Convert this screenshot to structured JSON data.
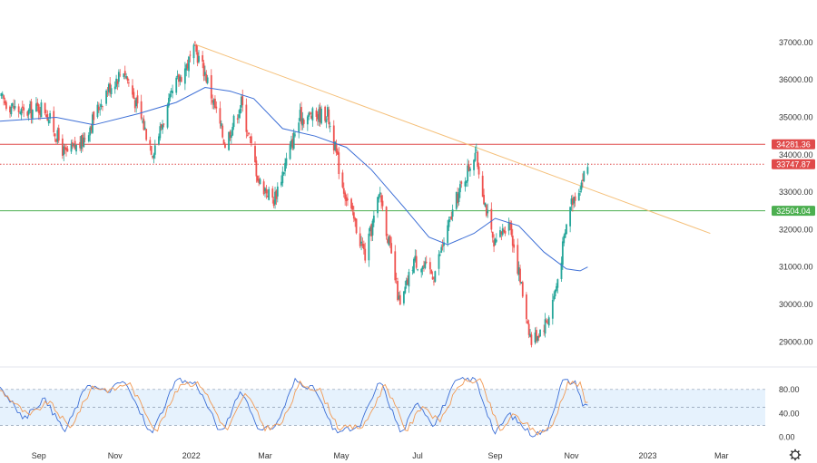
{
  "chart_data": [
    {
      "type": "candlestick",
      "panel": "price",
      "y_ticks": [
        37000,
        36000,
        35000,
        34000,
        33000,
        32000,
        31000,
        30000,
        29000
      ],
      "ylim": [
        28500,
        37700
      ],
      "colors": {
        "up": "#26a69a",
        "down": "#ef5350",
        "ma": "#3d6fd6",
        "trend": "#f5c07a",
        "resistance": "#e04a4a",
        "support": "#4caf50",
        "last": "#e04a4a"
      },
      "price_tags": [
        {
          "id": "resistance",
          "value": 34281.36,
          "label": "34281.36",
          "color": "#e04a4a"
        },
        {
          "id": "last",
          "value": 33747.87,
          "label": "33747.87",
          "color": "#e04a4a"
        },
        {
          "id": "support",
          "value": 32504.04,
          "label": "32504.04",
          "color": "#4caf50"
        }
      ],
      "trendline": {
        "start": {
          "date": "2022-01-04",
          "value": 36950
        },
        "end": {
          "date": "2023-02-20",
          "value": 31900
        }
      },
      "anchors": [
        {
          "date": "2021-08-01",
          "value": 35500
        },
        {
          "date": "2021-08-20",
          "value": 35100
        },
        {
          "date": "2021-09-05",
          "value": 35300
        },
        {
          "date": "2021-09-22",
          "value": 34000
        },
        {
          "date": "2021-10-05",
          "value": 34300
        },
        {
          "date": "2021-10-25",
          "value": 35700
        },
        {
          "date": "2021-11-08",
          "value": 36300
        },
        {
          "date": "2021-12-01",
          "value": 34100
        },
        {
          "date": "2021-12-20",
          "value": 35900
        },
        {
          "date": "2022-01-04",
          "value": 36800
        },
        {
          "date": "2022-01-12",
          "value": 36200
        },
        {
          "date": "2022-01-28",
          "value": 34300
        },
        {
          "date": "2022-02-10",
          "value": 35400
        },
        {
          "date": "2022-02-24",
          "value": 33300
        },
        {
          "date": "2022-03-08",
          "value": 32800
        },
        {
          "date": "2022-03-29",
          "value": 35000
        },
        {
          "date": "2022-04-20",
          "value": 35100
        },
        {
          "date": "2022-05-02",
          "value": 33200
        },
        {
          "date": "2022-05-20",
          "value": 31300
        },
        {
          "date": "2022-06-01",
          "value": 33000
        },
        {
          "date": "2022-06-17",
          "value": 29900
        },
        {
          "date": "2022-06-28",
          "value": 31200
        },
        {
          "date": "2022-07-14",
          "value": 30800
        },
        {
          "date": "2022-08-01",
          "value": 32800
        },
        {
          "date": "2022-08-16",
          "value": 34100
        },
        {
          "date": "2022-08-31",
          "value": 31500
        },
        {
          "date": "2022-09-12",
          "value": 32300
        },
        {
          "date": "2022-09-30",
          "value": 29000
        },
        {
          "date": "2022-10-13",
          "value": 29600
        },
        {
          "date": "2022-10-20",
          "value": 30500
        },
        {
          "date": "2022-10-31",
          "value": 32700
        },
        {
          "date": "2022-11-08",
          "value": 33200
        },
        {
          "date": "2022-11-14",
          "value": 33700
        }
      ],
      "moving_average": [
        {
          "date": "2021-08-01",
          "value": 34900
        },
        {
          "date": "2021-09-15",
          "value": 35000
        },
        {
          "date": "2021-10-15",
          "value": 34800
        },
        {
          "date": "2021-11-20",
          "value": 35100
        },
        {
          "date": "2021-12-20",
          "value": 35400
        },
        {
          "date": "2022-01-12",
          "value": 35800
        },
        {
          "date": "2022-02-01",
          "value": 35700
        },
        {
          "date": "2022-02-20",
          "value": 35500
        },
        {
          "date": "2022-03-15",
          "value": 34700
        },
        {
          "date": "2022-04-10",
          "value": 34500
        },
        {
          "date": "2022-05-05",
          "value": 34200
        },
        {
          "date": "2022-05-25",
          "value": 33600
        },
        {
          "date": "2022-06-20",
          "value": 32600
        },
        {
          "date": "2022-07-10",
          "value": 31800
        },
        {
          "date": "2022-07-25",
          "value": 31600
        },
        {
          "date": "2022-08-15",
          "value": 31900
        },
        {
          "date": "2022-09-01",
          "value": 32300
        },
        {
          "date": "2022-09-20",
          "value": 32100
        },
        {
          "date": "2022-10-10",
          "value": 31400
        },
        {
          "date": "2022-10-28",
          "value": 30950
        },
        {
          "date": "2022-11-08",
          "value": 30900
        },
        {
          "date": "2022-11-14",
          "value": 31000
        }
      ]
    },
    {
      "type": "line",
      "panel": "stochastic",
      "y_ticks": [
        80,
        40,
        0
      ],
      "tick_labels": [
        "80.00",
        "40.00",
        "0.00"
      ],
      "ylim": [
        -2,
        110
      ],
      "band": [
        20,
        80
      ],
      "midline": 50,
      "colors": {
        "k": "#3d6fd6",
        "d": "#f29a55",
        "band_fill": "#e6f2fd",
        "band_line": "#8a9ab0"
      },
      "series": [
        {
          "id": "k",
          "anchors": [
            {
              "date": "2021-08-01",
              "value": 85
            },
            {
              "date": "2021-08-20",
              "value": 30
            },
            {
              "date": "2021-09-05",
              "value": 65
            },
            {
              "date": "2021-09-22",
              "value": 10
            },
            {
              "date": "2021-10-10",
              "value": 90
            },
            {
              "date": "2021-10-25",
              "value": 75
            },
            {
              "date": "2021-11-08",
              "value": 95
            },
            {
              "date": "2021-11-30",
              "value": 5
            },
            {
              "date": "2021-12-20",
              "value": 95
            },
            {
              "date": "2022-01-05",
              "value": 90
            },
            {
              "date": "2022-01-25",
              "value": 5
            },
            {
              "date": "2022-02-10",
              "value": 80
            },
            {
              "date": "2022-02-25",
              "value": 10
            },
            {
              "date": "2022-03-10",
              "value": 20
            },
            {
              "date": "2022-03-25",
              "value": 95
            },
            {
              "date": "2022-04-10",
              "value": 80
            },
            {
              "date": "2022-04-25",
              "value": 10
            },
            {
              "date": "2022-05-15",
              "value": 15
            },
            {
              "date": "2022-06-01",
              "value": 95
            },
            {
              "date": "2022-06-18",
              "value": 5
            },
            {
              "date": "2022-07-01",
              "value": 60
            },
            {
              "date": "2022-07-14",
              "value": 20
            },
            {
              "date": "2022-08-01",
              "value": 95
            },
            {
              "date": "2022-08-16",
              "value": 98
            },
            {
              "date": "2022-09-01",
              "value": 5
            },
            {
              "date": "2022-09-12",
              "value": 40
            },
            {
              "date": "2022-09-30",
              "value": 5
            },
            {
              "date": "2022-10-12",
              "value": 10
            },
            {
              "date": "2022-10-25",
              "value": 95
            },
            {
              "date": "2022-11-05",
              "value": 90
            },
            {
              "date": "2022-11-10",
              "value": 55
            },
            {
              "date": "2022-11-14",
              "value": 52
            }
          ]
        },
        {
          "id": "d",
          "anchors": [
            {
              "date": "2021-08-01",
              "value": 80
            },
            {
              "date": "2021-08-24",
              "value": 35
            },
            {
              "date": "2021-09-09",
              "value": 60
            },
            {
              "date": "2021-09-26",
              "value": 15
            },
            {
              "date": "2021-10-14",
              "value": 85
            },
            {
              "date": "2021-10-29",
              "value": 78
            },
            {
              "date": "2021-11-12",
              "value": 92
            },
            {
              "date": "2021-12-04",
              "value": 10
            },
            {
              "date": "2021-12-24",
              "value": 92
            },
            {
              "date": "2022-01-09",
              "value": 88
            },
            {
              "date": "2022-01-29",
              "value": 10
            },
            {
              "date": "2022-02-14",
              "value": 75
            },
            {
              "date": "2022-03-01",
              "value": 15
            },
            {
              "date": "2022-03-14",
              "value": 22
            },
            {
              "date": "2022-03-29",
              "value": 90
            },
            {
              "date": "2022-04-14",
              "value": 78
            },
            {
              "date": "2022-04-29",
              "value": 15
            },
            {
              "date": "2022-05-19",
              "value": 18
            },
            {
              "date": "2022-06-05",
              "value": 90
            },
            {
              "date": "2022-06-22",
              "value": 10
            },
            {
              "date": "2022-07-05",
              "value": 55
            },
            {
              "date": "2022-07-18",
              "value": 25
            },
            {
              "date": "2022-08-05",
              "value": 92
            },
            {
              "date": "2022-08-20",
              "value": 95
            },
            {
              "date": "2022-09-05",
              "value": 10
            },
            {
              "date": "2022-09-16",
              "value": 38
            },
            {
              "date": "2022-10-04",
              "value": 8
            },
            {
              "date": "2022-10-16",
              "value": 15
            },
            {
              "date": "2022-10-29",
              "value": 92
            },
            {
              "date": "2022-11-08",
              "value": 88
            },
            {
              "date": "2022-11-12",
              "value": 60
            },
            {
              "date": "2022-11-14",
              "value": 56
            }
          ]
        }
      ]
    }
  ],
  "x_axis": {
    "start": "2021-08-01",
    "end": "2023-04-05",
    "ticks": [
      {
        "date": "2021-09-01",
        "label": "Sep"
      },
      {
        "date": "2021-11-01",
        "label": "Nov"
      },
      {
        "date": "2022-01-01",
        "label": "2022"
      },
      {
        "date": "2022-03-01",
        "label": "Mar"
      },
      {
        "date": "2022-05-01",
        "label": "May"
      },
      {
        "date": "2022-07-01",
        "label": "Jul"
      },
      {
        "date": "2022-09-01",
        "label": "Sep"
      },
      {
        "date": "2022-11-01",
        "label": "Nov"
      },
      {
        "date": "2023-01-01",
        "label": "2023"
      },
      {
        "date": "2023-03-01",
        "label": "Mar"
      }
    ]
  },
  "icons": {
    "settings": "gear-icon"
  }
}
